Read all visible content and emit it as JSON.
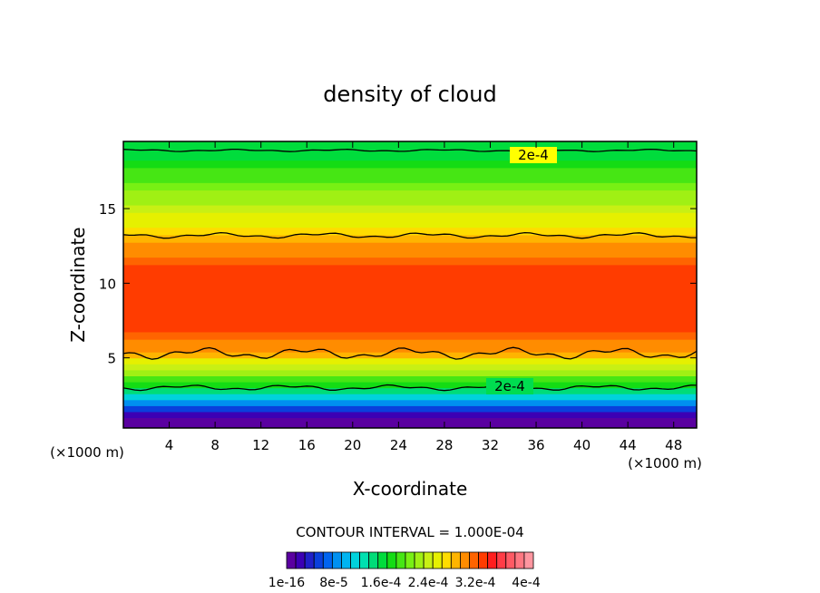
{
  "chart_data": {
    "type": "heatmap",
    "title": "density of cloud",
    "xlabel": "X-coordinate",
    "ylabel": "Z-coordinate",
    "x_unit_label": "(×1000 m)",
    "xlim": [
      0,
      50
    ],
    "ylim": [
      0.3,
      19.5
    ],
    "xticks": [
      "4",
      "8",
      "12",
      "16",
      "20",
      "24",
      "28",
      "32",
      "36",
      "40",
      "44",
      "48"
    ],
    "yticks": [
      "5",
      "10",
      "15"
    ],
    "contour_interval_text": "CONTOUR INTERVAL = 1.000E-04",
    "contour_labels": [
      "2e-4",
      "2e-4"
    ],
    "colorbar": {
      "labels": [
        "1e-16",
        "8e-5",
        "1.6e-4",
        "2.4e-4",
        "3.2e-4",
        "4e-4"
      ],
      "colors": [
        "#5a00a0",
        "#3c00b4",
        "#2020c8",
        "#0a40dc",
        "#0064f0",
        "#0090f0",
        "#00b4f0",
        "#00d2dc",
        "#00e0b0",
        "#00dc78",
        "#00dc3c",
        "#14dc14",
        "#46e614",
        "#78f014",
        "#a0f014",
        "#c8f014",
        "#e6f000",
        "#ffdc00",
        "#ffb400",
        "#ff8c00",
        "#ff6400",
        "#ff3c00",
        "#ff1e1e",
        "#ff3c46",
        "#ff5a64",
        "#ff7882",
        "#ff96a0"
      ]
    },
    "vertical_profile": {
      "z": [
        0.8,
        1.2,
        1.6,
        2.0,
        2.4,
        2.8,
        3.2,
        3.6,
        4.0,
        4.4,
        4.8,
        5.2,
        5.6,
        6.0,
        6.5,
        7.0,
        8.0,
        9.0,
        10.0,
        11.0,
        11.5,
        12.0,
        12.5,
        13.0,
        13.5,
        14.0,
        14.5,
        15.0,
        15.5,
        16.0,
        16.5,
        17.0,
        17.5,
        18.0,
        18.5,
        19.0
      ],
      "density": [
        1e-07,
        3e-05,
        6e-05,
        9e-05,
        0.00012,
        0.00015,
        0.00018,
        0.0002,
        0.00022,
        0.00024,
        0.00026,
        0.00028,
        0.0003,
        0.00031,
        0.00032,
        0.00033,
        0.00034,
        0.00034,
        0.00034,
        0.00033,
        0.00032,
        0.00031,
        0.0003,
        0.00028,
        0.00027,
        0.00026,
        0.00025,
        0.00024,
        0.00023,
        0.00022,
        0.00021,
        0.0002,
        0.00019,
        0.00018,
        0.00017,
        0.00016
      ]
    }
  }
}
